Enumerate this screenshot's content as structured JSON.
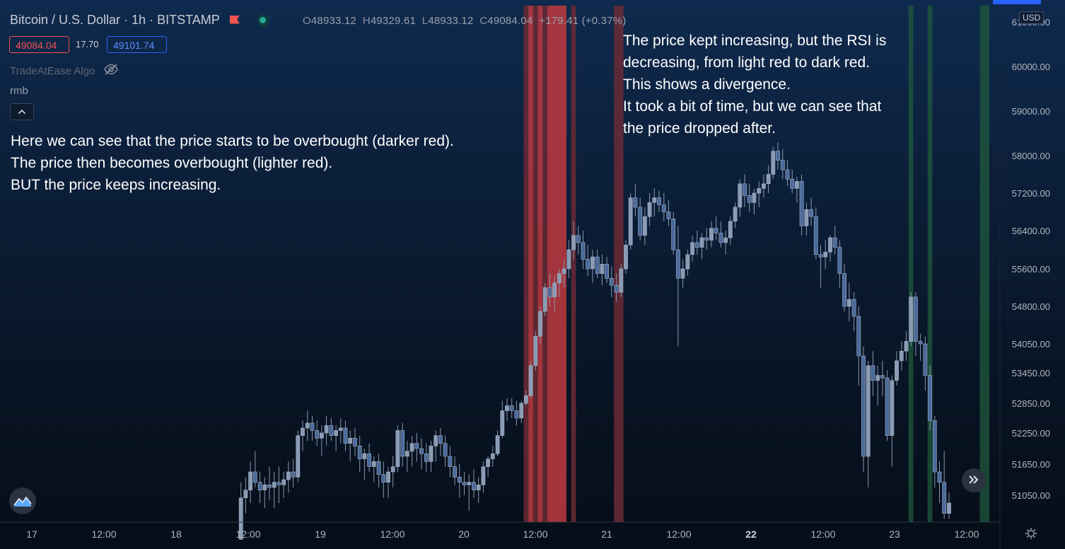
{
  "header": {
    "symbol_title": "Bitcoin / U.S. Dollar · 1h · BITSTAMP",
    "ohlc": {
      "open_label": "O",
      "open": "48933.12",
      "high_label": "H",
      "high": "49329.61",
      "low_label": "L",
      "low": "48933.12",
      "close_label": "C",
      "close": "49084.04",
      "change": "+179.41 (+0.37%)"
    },
    "bid_price": "49084.04",
    "spread": "17.70",
    "ask_price": "49101.74"
  },
  "indicator": {
    "name": "TradeAtEase Algo"
  },
  "sublabel": "rmb",
  "notes": {
    "left": "Here we can see that the price starts to be overbought (darker red).\nThe price then becomes overbought (lighter red).\nBUT the price keeps increasing.",
    "right": "The price kept increasing, but the RSI is\ndecreasing, from light red to dark red.\nThis shows a divergence.\nIt took a bit of time, but we can see that\nthe price dropped after."
  },
  "price_axis": {
    "currency": "USD",
    "labels": [
      "61000.00",
      "60000.00",
      "59000.00",
      "58000.00",
      "57200.00",
      "56400.00",
      "55600.00",
      "54800.00",
      "54050.00",
      "53450.00",
      "52850.00",
      "52250.00",
      "51650.00",
      "51050.00"
    ]
  },
  "time_axis": {
    "labels": [
      {
        "text": "17",
        "bold": false
      },
      {
        "text": "12:00",
        "bold": false
      },
      {
        "text": "18",
        "bold": false
      },
      {
        "text": "12:00",
        "bold": false
      },
      {
        "text": "19",
        "bold": false
      },
      {
        "text": "12:00",
        "bold": false
      },
      {
        "text": "20",
        "bold": false
      },
      {
        "text": "12:00",
        "bold": false
      },
      {
        "text": "21",
        "bold": false
      },
      {
        "text": "12:00",
        "bold": false
      },
      {
        "text": "22",
        "bold": true
      },
      {
        "text": "12:00",
        "bold": false
      },
      {
        "text": "23",
        "bold": false
      },
      {
        "text": "12:00",
        "bold": false
      }
    ]
  },
  "colors": {
    "candle_up": "#8a9bb5",
    "candle_down": "#4a6a9a",
    "overbought_dark": "#6b2a35",
    "overbought_light": "#c0393f",
    "oversold": "#1f5a3c",
    "accent_blue": "#2962ff",
    "bid_red": "#f05350"
  },
  "chart_data": {
    "type": "candlestick",
    "timeframe": "1h",
    "y_unit": "USD",
    "ylim": [
      50600,
      61200
    ],
    "x_day_ticks": [
      "17",
      "18",
      "19",
      "20",
      "21",
      "22",
      "23"
    ],
    "signal_zones": [
      {
        "start": 104,
        "end": 105,
        "level": "overbought_dark"
      },
      {
        "start": 105,
        "end": 106,
        "level": "overbought_light"
      },
      {
        "start": 106,
        "end": 107,
        "level": "overbought_dark"
      },
      {
        "start": 107,
        "end": 108,
        "level": "overbought_light"
      },
      {
        "start": 108,
        "end": 109,
        "level": "overbought_dark"
      },
      {
        "start": 109,
        "end": 113,
        "level": "overbought_light"
      },
      {
        "start": 114,
        "end": 115,
        "level": "overbought_dark"
      },
      {
        "start": 123,
        "end": 125,
        "level": "overbought_dark"
      },
      {
        "start": 185,
        "end": 186,
        "level": "oversold"
      },
      {
        "start": 189,
        "end": 190,
        "level": "oversold"
      },
      {
        "start": 200,
        "end": 202,
        "level": "oversold"
      }
    ],
    "candles": [
      [
        44,
        50200,
        51300,
        50200,
        51000
      ],
      [
        45,
        51000,
        51400,
        50700,
        51150
      ],
      [
        46,
        51150,
        51700,
        50900,
        51500
      ],
      [
        47,
        51500,
        51900,
        51200,
        51300
      ],
      [
        48,
        51300,
        51500,
        50900,
        51150
      ],
      [
        49,
        51150,
        51400,
        50800,
        51250
      ],
      [
        50,
        51250,
        51600,
        50950,
        51200
      ],
      [
        51,
        51200,
        51500,
        50800,
        51300
      ],
      [
        52,
        51300,
        51600,
        50900,
        51250
      ],
      [
        53,
        51250,
        51500,
        51000,
        51350
      ],
      [
        54,
        51350,
        51700,
        51100,
        51500
      ],
      [
        55,
        51500,
        51750,
        51200,
        51400
      ],
      [
        56,
        51400,
        52300,
        51300,
        52200
      ],
      [
        57,
        52200,
        52500,
        51900,
        52350
      ],
      [
        58,
        52350,
        52700,
        52100,
        52450
      ],
      [
        59,
        52450,
        52600,
        52100,
        52300
      ],
      [
        60,
        52300,
        52500,
        52000,
        52150
      ],
      [
        61,
        52150,
        52400,
        51800,
        52250
      ],
      [
        62,
        52250,
        52600,
        52000,
        52400
      ],
      [
        63,
        52400,
        52550,
        52100,
        52200
      ],
      [
        64,
        52200,
        52400,
        51900,
        52300
      ],
      [
        65,
        52300,
        52550,
        52050,
        52350
      ],
      [
        66,
        52350,
        52500,
        51900,
        52050
      ],
      [
        67,
        52050,
        52300,
        51700,
        52150
      ],
      [
        68,
        52150,
        52350,
        51800,
        52000
      ],
      [
        69,
        52000,
        52200,
        51500,
        51750
      ],
      [
        70,
        51750,
        51950,
        51350,
        51850
      ],
      [
        71,
        51850,
        52050,
        51500,
        51600
      ],
      [
        72,
        51600,
        51800,
        51300,
        51700
      ],
      [
        73,
        51700,
        51850,
        51200,
        51450
      ],
      [
        74,
        51450,
        51700,
        51000,
        51300
      ],
      [
        75,
        51300,
        51600,
        51000,
        51500
      ],
      [
        76,
        51500,
        51800,
        51200,
        51600
      ],
      [
        77,
        51600,
        52400,
        51500,
        52300
      ],
      [
        78,
        52300,
        52450,
        51600,
        51800
      ],
      [
        79,
        51800,
        52100,
        51500,
        51900
      ],
      [
        80,
        51900,
        52200,
        51600,
        52050
      ],
      [
        81,
        52050,
        52250,
        51700,
        51950
      ],
      [
        82,
        51950,
        52150,
        51550,
        51850
      ],
      [
        83,
        51850,
        52050,
        51500,
        51700
      ],
      [
        84,
        51700,
        52100,
        51500,
        52000
      ],
      [
        85,
        52000,
        52300,
        51700,
        52200
      ],
      [
        86,
        52200,
        52350,
        51800,
        52050
      ],
      [
        87,
        52050,
        52200,
        51600,
        51800
      ],
      [
        88,
        51800,
        52000,
        51400,
        51600
      ],
      [
        89,
        51600,
        51800,
        51250,
        51400
      ],
      [
        90,
        51400,
        51650,
        51000,
        51300
      ],
      [
        91,
        51300,
        51500,
        51050,
        51250
      ],
      [
        92,
        51250,
        51450,
        50750,
        51300
      ],
      [
        93,
        51300,
        51550,
        51000,
        51150
      ],
      [
        94,
        51150,
        51400,
        50900,
        51250
      ],
      [
        95,
        51250,
        51700,
        51100,
        51600
      ],
      [
        96,
        51600,
        51800,
        51400,
        51750
      ],
      [
        97,
        51750,
        52000,
        51600,
        51850
      ],
      [
        98,
        51850,
        52300,
        51800,
        52200
      ],
      [
        99,
        52200,
        52900,
        52150,
        52700
      ],
      [
        100,
        52700,
        52950,
        52500,
        52800
      ],
      [
        101,
        52800,
        52950,
        52550,
        52700
      ],
      [
        102,
        52700,
        52900,
        52400,
        52550
      ],
      [
        103,
        52550,
        52900,
        52450,
        52850
      ],
      [
        104,
        52850,
        53100,
        52800,
        53000
      ],
      [
        105,
        53000,
        53700,
        52950,
        53600
      ],
      [
        106,
        53600,
        54300,
        53500,
        54200
      ],
      [
        107,
        54200,
        54800,
        54050,
        54700
      ],
      [
        108,
        54700,
        55300,
        54600,
        55200
      ],
      [
        109,
        55200,
        55500,
        54800,
        55000
      ],
      [
        110,
        55000,
        55450,
        54700,
        55300
      ],
      [
        111,
        55300,
        55600,
        55000,
        55500
      ],
      [
        112,
        55500,
        55800,
        55200,
        55600
      ],
      [
        113,
        55600,
        56200,
        55400,
        56000
      ],
      [
        114,
        56000,
        56600,
        55800,
        56300
      ],
      [
        115,
        56300,
        56500,
        55900,
        56150
      ],
      [
        116,
        56150,
        56400,
        55600,
        55800
      ],
      [
        117,
        55800,
        56100,
        55450,
        55600
      ],
      [
        118,
        55600,
        56000,
        55300,
        55850
      ],
      [
        119,
        55850,
        56000,
        55400,
        55500
      ],
      [
        120,
        55500,
        55900,
        55250,
        55700
      ],
      [
        121,
        55700,
        55850,
        55300,
        55400
      ],
      [
        122,
        55400,
        55650,
        55000,
        55250
      ],
      [
        123,
        55250,
        55500,
        54900,
        55100
      ],
      [
        124,
        55100,
        55700,
        55000,
        55600
      ],
      [
        125,
        55600,
        56200,
        55500,
        56100
      ],
      [
        126,
        56100,
        57200,
        56000,
        57100
      ],
      [
        127,
        57100,
        57400,
        56700,
        56900
      ],
      [
        128,
        56900,
        57100,
        56200,
        56300
      ],
      [
        129,
        56300,
        56900,
        56100,
        56700
      ],
      [
        130,
        56700,
        57200,
        56500,
        57000
      ],
      [
        131,
        57000,
        57300,
        56700,
        57100
      ],
      [
        132,
        57100,
        57250,
        56800,
        56950
      ],
      [
        133,
        56950,
        57200,
        56600,
        56800
      ],
      [
        134,
        56800,
        57050,
        56500,
        56650
      ],
      [
        135,
        56650,
        56800,
        55900,
        56000
      ],
      [
        136,
        56000,
        56500,
        54000,
        55400
      ],
      [
        137,
        55400,
        55800,
        55200,
        55600
      ],
      [
        138,
        55600,
        56000,
        55450,
        55900
      ],
      [
        139,
        55900,
        56300,
        55750,
        56150
      ],
      [
        140,
        56150,
        56400,
        55900,
        56050
      ],
      [
        141,
        56050,
        56350,
        55800,
        56250
      ],
      [
        142,
        56250,
        56450,
        56000,
        56200
      ],
      [
        143,
        56200,
        56600,
        56050,
        56450
      ],
      [
        144,
        56450,
        56700,
        56200,
        56350
      ],
      [
        145,
        56350,
        56600,
        56050,
        56150
      ],
      [
        146,
        56150,
        56400,
        55900,
        56250
      ],
      [
        147,
        56250,
        56700,
        56100,
        56600
      ],
      [
        148,
        56600,
        57000,
        56450,
        56900
      ],
      [
        149,
        56900,
        57500,
        56700,
        57400
      ],
      [
        150,
        57400,
        57600,
        56900,
        57150
      ],
      [
        151,
        57150,
        57400,
        56800,
        57000
      ],
      [
        152,
        57000,
        57300,
        56750,
        57200
      ],
      [
        153,
        57200,
        57450,
        56900,
        57300
      ],
      [
        154,
        57300,
        57600,
        57100,
        57400
      ],
      [
        155,
        57400,
        57800,
        57200,
        57600
      ],
      [
        156,
        57600,
        58200,
        57500,
        58100
      ],
      [
        157,
        58100,
        58300,
        57700,
        57900
      ],
      [
        158,
        57900,
        58150,
        57500,
        57700
      ],
      [
        159,
        57700,
        57900,
        57350,
        57500
      ],
      [
        160,
        57500,
        57700,
        57200,
        57300
      ],
      [
        161,
        57300,
        57550,
        57000,
        57450
      ],
      [
        162,
        57450,
        57600,
        56300,
        56500
      ],
      [
        163,
        56500,
        57000,
        56300,
        56850
      ],
      [
        164,
        56850,
        57100,
        56500,
        56700
      ],
      [
        165,
        56700,
        56900,
        55800,
        55900
      ],
      [
        166,
        55900,
        56100,
        55200,
        55850
      ],
      [
        167,
        55850,
        56200,
        55600,
        55950
      ],
      [
        168,
        55950,
        56300,
        55750,
        56250
      ],
      [
        169,
        56250,
        56500,
        55900,
        56050
      ],
      [
        170,
        56050,
        56200,
        55200,
        55500
      ],
      [
        171,
        55500,
        55700,
        54700,
        54800
      ],
      [
        172,
        54800,
        55300,
        54500,
        54950
      ],
      [
        173,
        54950,
        55100,
        54300,
        54600
      ],
      [
        174,
        54600,
        54800,
        53200,
        53800
      ],
      [
        175,
        53800,
        54000,
        51500,
        51800
      ],
      [
        176,
        51800,
        53700,
        51200,
        53600
      ],
      [
        177,
        53600,
        53900,
        53000,
        53300
      ],
      [
        178,
        53300,
        53600,
        52800,
        53400
      ],
      [
        179,
        53400,
        53700,
        53000,
        53350
      ],
      [
        180,
        53350,
        53500,
        52100,
        52200
      ],
      [
        181,
        52200,
        53400,
        51600,
        53300
      ],
      [
        182,
        53300,
        53900,
        53200,
        53700
      ],
      [
        183,
        53700,
        54100,
        53500,
        53900
      ],
      [
        184,
        53900,
        54300,
        53700,
        54100
      ],
      [
        185,
        54100,
        55100,
        54000,
        55000
      ],
      [
        186,
        55000,
        55100,
        53800,
        54100
      ],
      [
        187,
        54100,
        54250,
        53700,
        54050
      ],
      [
        188,
        54050,
        54200,
        53100,
        53400
      ],
      [
        189,
        53400,
        53600,
        52300,
        52500
      ],
      [
        190,
        52500,
        52600,
        51200,
        51500
      ],
      [
        191,
        51500,
        51700,
        50900,
        51300
      ],
      [
        192,
        51300,
        51900,
        50600,
        50700
      ],
      [
        193,
        50700,
        51100,
        50600,
        50900
      ]
    ]
  }
}
